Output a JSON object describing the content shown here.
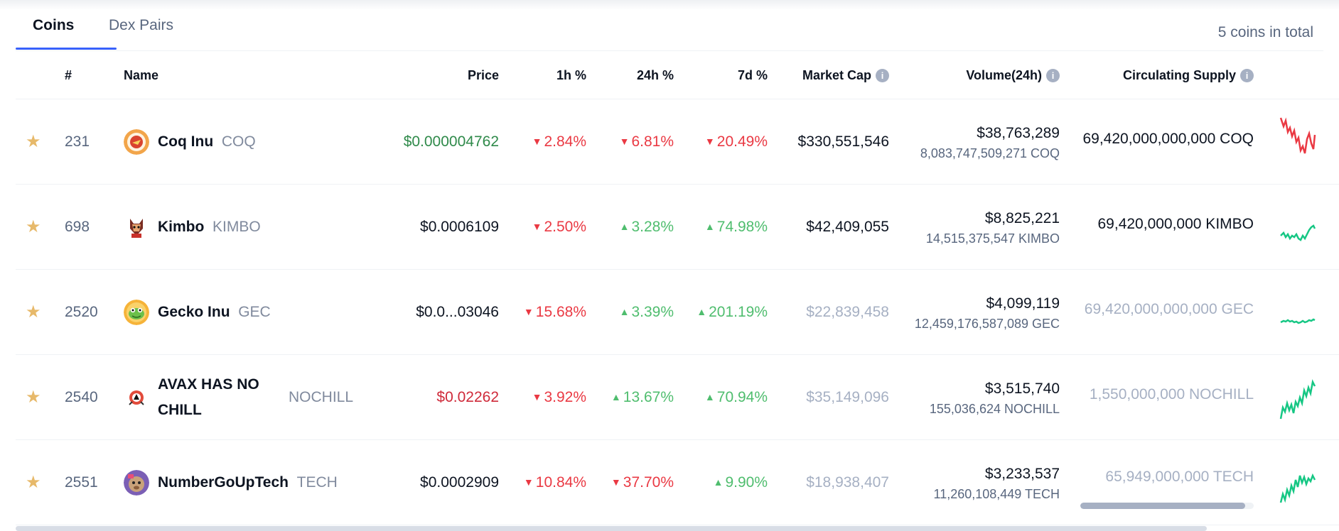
{
  "tabs": {
    "coins": "Coins",
    "dex_pairs": "Dex Pairs",
    "total": "5 coins in total"
  },
  "columns": {
    "rank": "#",
    "name": "Name",
    "price": "Price",
    "h1": "1h %",
    "h24": "24h %",
    "d7": "7d %",
    "market_cap": "Market Cap",
    "volume": "Volume(24h)",
    "supply": "Circulating Supply"
  },
  "rows": [
    {
      "rank": "231",
      "name": "Coq Inu",
      "symbol": "COQ",
      "price": "$0.000004762",
      "h1": "2.84%",
      "h1_dir": "down",
      "h24": "6.81%",
      "h24_dir": "down",
      "d7": "20.49%",
      "d7_dir": "down",
      "market_cap": "$330,551,546",
      "volume_usd": "$38,763,289",
      "volume_coin": "8,083,747,509,271 COQ",
      "supply": "69,420,000,000,000 COQ",
      "spark_color": "#ea3943"
    },
    {
      "rank": "698",
      "name": "Kimbo",
      "symbol": "KIMBO",
      "price": "$0.0006109",
      "h1": "2.50%",
      "h1_dir": "down",
      "h24": "3.28%",
      "h24_dir": "up",
      "d7": "74.98%",
      "d7_dir": "up",
      "market_cap": "$42,409,055",
      "volume_usd": "$8,825,221",
      "volume_coin": "14,515,375,547 KIMBO",
      "supply": "69,420,000,000 KIMBO",
      "spark_color": "#16c784"
    },
    {
      "rank": "2520",
      "name": "Gecko Inu",
      "symbol": "GEC",
      "price": "$0.0...03046",
      "h1": "15.68%",
      "h1_dir": "down",
      "h24": "3.39%",
      "h24_dir": "up",
      "d7": "201.19%",
      "d7_dir": "up",
      "market_cap": "$22,839,458",
      "volume_usd": "$4,099,119",
      "volume_coin": "12,459,176,587,089 GEC",
      "supply": "69,420,000,000,000 GEC",
      "spark_color": "#16c784"
    },
    {
      "rank": "2540",
      "name_line1": "AVAX HAS NO",
      "name_line2": "CHILL",
      "symbol": "NOCHILL",
      "price": "$0.02262",
      "h1": "3.92%",
      "h1_dir": "down",
      "h24": "13.67%",
      "h24_dir": "up",
      "d7": "70.94%",
      "d7_dir": "up",
      "market_cap": "$35,149,096",
      "volume_usd": "$3,515,740",
      "volume_coin": "155,036,624 NOCHILL",
      "supply": "1,550,000,000 NOCHILL",
      "spark_color": "#16c784"
    },
    {
      "rank": "2551",
      "name": "NumberGoUpTech",
      "symbol": "TECH",
      "price": "$0.0002909",
      "h1": "10.84%",
      "h1_dir": "down",
      "h24": "37.70%",
      "h24_dir": "down",
      "d7": "9.90%",
      "d7_dir": "up",
      "market_cap": "$18,938,407",
      "volume_usd": "$3,233,537",
      "volume_coin": "11,260,108,449 TECH",
      "supply": "65,949,000,000 TECH",
      "supply_progress": 0.95,
      "spark_color": "#16c784"
    }
  ],
  "icons": {
    "star": "star-icon",
    "info": "info-icon",
    "down": "triangle-down-icon",
    "up": "triangle-up-icon"
  }
}
